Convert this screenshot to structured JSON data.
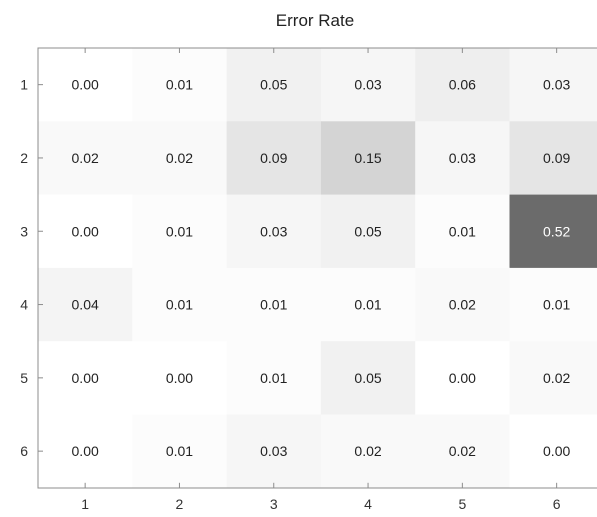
{
  "chart_data": {
    "type": "heatmap",
    "title": "Error Rate",
    "xlabel": "",
    "ylabel": "",
    "x_categories": [
      "1",
      "2",
      "3",
      "4",
      "5",
      "6"
    ],
    "y_categories": [
      "1",
      "2",
      "3",
      "4",
      "5",
      "6"
    ],
    "values": [
      [
        0.0,
        0.01,
        0.05,
        0.03,
        0.06,
        0.03
      ],
      [
        0.02,
        0.02,
        0.09,
        0.15,
        0.03,
        0.09
      ],
      [
        0.0,
        0.01,
        0.03,
        0.05,
        0.01,
        0.52
      ],
      [
        0.04,
        0.01,
        0.01,
        0.01,
        0.02,
        0.01
      ],
      [
        0.0,
        0.0,
        0.01,
        0.05,
        0.0,
        0.02
      ],
      [
        0.0,
        0.01,
        0.03,
        0.02,
        0.02,
        0.0
      ]
    ],
    "value_labels": [
      [
        "0.00",
        "0.01",
        "0.05",
        "0.03",
        "0.06",
        "0.03"
      ],
      [
        "0.02",
        "0.02",
        "0.09",
        "0.15",
        "0.03",
        "0.09"
      ],
      [
        "0.00",
        "0.01",
        "0.03",
        "0.05",
        "0.01",
        "0.52"
      ],
      [
        "0.04",
        "0.01",
        "0.01",
        "0.01",
        "0.02",
        "0.01"
      ],
      [
        "0.00",
        "0.00",
        "0.01",
        "0.05",
        "0.00",
        "0.02"
      ],
      [
        "0.00",
        "0.01",
        "0.03",
        "0.02",
        "0.02",
        "0.00"
      ]
    ],
    "colormap": {
      "low": "#ffffff",
      "high": "#6b6b6b"
    },
    "grid": false,
    "legend": "none"
  }
}
